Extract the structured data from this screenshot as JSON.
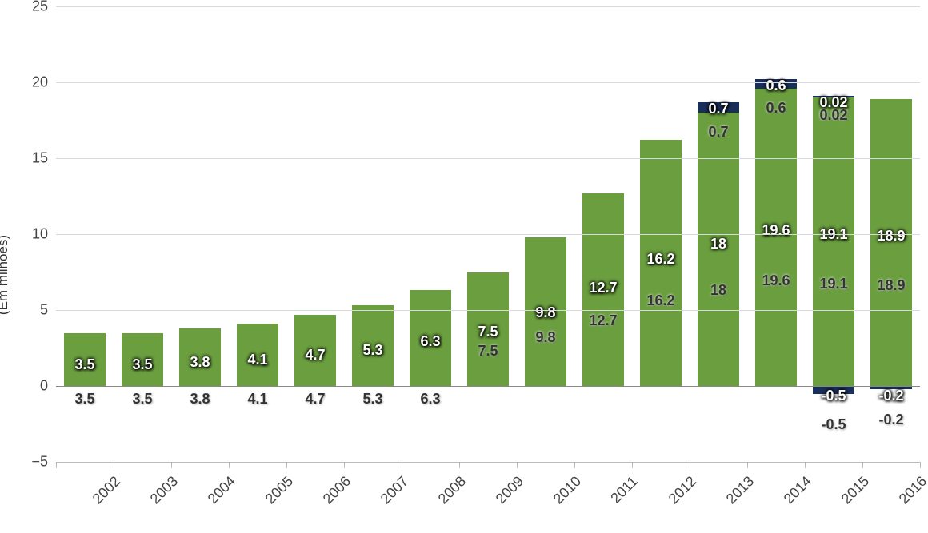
{
  "chart": {
    "type": "stacked-bar",
    "y_axis_label": "(Em milhões)",
    "ylim_min": -5,
    "ylim_max": 25,
    "ytick_step": 5,
    "yticks": [
      -5,
      0,
      5,
      10,
      15,
      20,
      25
    ],
    "background_color": "#ffffff",
    "grid_color": "#d9d9d9",
    "axis_color": "#bbbbbb",
    "zero_line_color": "#888888",
    "colors": {
      "main": "#6a9e3f",
      "secondary": "#1a2e5a"
    },
    "label_fontsize": 18,
    "axis_fontsize": 18,
    "ylabel_fontsize": 17,
    "bar_width_ratio": 0.72,
    "categories": [
      "2002",
      "2003",
      "2004",
      "2005",
      "2006",
      "2007",
      "2008",
      "2009",
      "2010",
      "2011",
      "2012",
      "2013",
      "2014",
      "2015",
      "2016"
    ],
    "series_main": [
      3.5,
      3.5,
      3.8,
      4.1,
      4.7,
      5.3,
      6.3,
      7.5,
      9.8,
      12.7,
      16.2,
      18.0,
      19.6,
      19.1,
      18.9
    ],
    "series_secondary": [
      0,
      0,
      0,
      0,
      0,
      0,
      0,
      0,
      0,
      0,
      0,
      0.7,
      0.6,
      0.02,
      0
    ],
    "series_negative": [
      0,
      0,
      0,
      0,
      0,
      0,
      0,
      0,
      0,
      0,
      0,
      0,
      0,
      -0.5,
      -0.2
    ],
    "labels_main": [
      "3.5",
      "3.5",
      "3.8",
      "4.1",
      "4.7",
      "5.3",
      "6.3",
      "7.5",
      "9.8",
      "12.7",
      "16.2",
      "18",
      "19.6",
      "19.1",
      "18.9"
    ],
    "labels_secondary": [
      "",
      "",
      "",
      "",
      "",
      "",
      "",
      "",
      "",
      "",
      "",
      "0.7",
      "0.6",
      "0.02",
      ""
    ],
    "labels_negative": [
      "",
      "",
      "",
      "",
      "",
      "",
      "",
      "",
      "",
      "",
      "",
      "",
      "",
      "-0.5",
      "-0.2"
    ]
  }
}
